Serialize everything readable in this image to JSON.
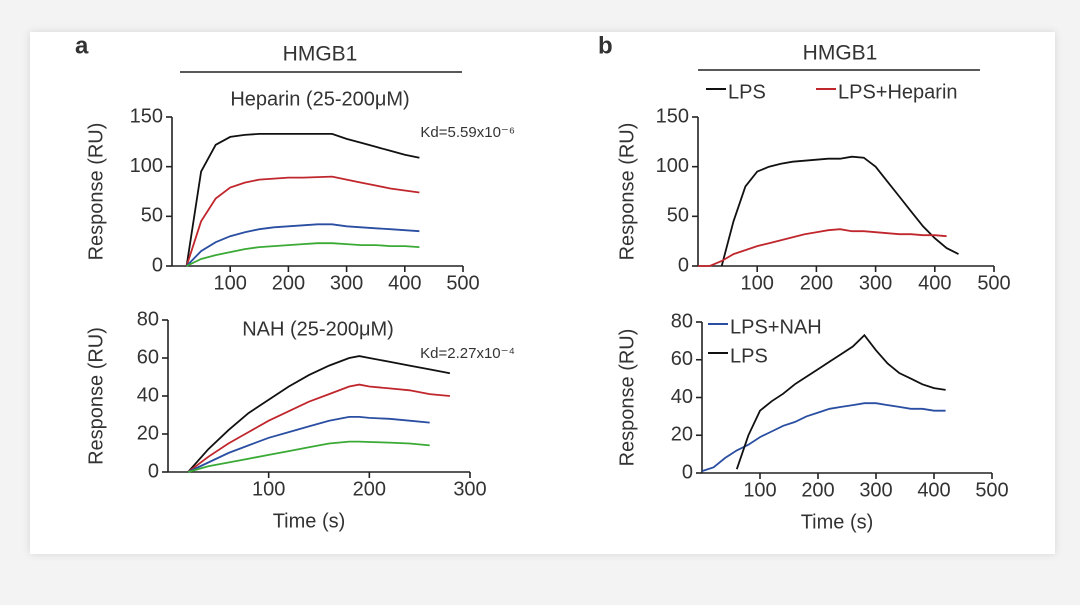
{
  "panels": [
    {
      "label": "a",
      "header": "HMGB1"
    },
    {
      "label": "b",
      "header": "HMGB1"
    }
  ],
  "chart_data": [
    {
      "type": "line",
      "title": "Heparin (25-200μM)",
      "annotation": "Kd=5.59x10⁻⁶",
      "ylabel": "Response (RU)",
      "x": [
        25,
        50,
        75,
        100,
        125,
        150,
        175,
        200,
        225,
        250,
        275,
        300,
        325,
        350,
        375,
        400,
        425
      ],
      "xlim": [
        0,
        500
      ],
      "ylim": [
        0,
        150
      ],
      "xticks": [
        100,
        200,
        300,
        400,
        500
      ],
      "yticks": [
        0,
        50,
        100,
        150
      ],
      "series": [
        {
          "color": "#111111",
          "values": [
            0,
            95,
            122,
            130,
            132,
            133,
            133,
            133,
            133,
            133,
            133,
            128,
            124,
            120,
            116,
            112,
            109
          ]
        },
        {
          "color": "#c0272d",
          "values": [
            0,
            45,
            68,
            79,
            84,
            87,
            88,
            89,
            89,
            89.5,
            90,
            87,
            84,
            81,
            78,
            76,
            74
          ]
        },
        {
          "color": "#2a4ea2",
          "values": [
            0,
            15,
            24,
            30,
            34,
            37,
            39,
            40,
            41,
            42,
            42,
            40,
            39,
            38,
            37,
            36,
            35
          ]
        },
        {
          "color": "#3aaa35",
          "values": [
            0,
            7,
            11,
            14,
            17,
            19,
            20,
            21,
            22,
            23,
            23,
            22,
            21,
            21,
            20,
            20,
            19
          ]
        }
      ]
    },
    {
      "type": "line",
      "title": "NAH (25-200μM)",
      "annotation": "Kd=2.27x10⁻⁴",
      "ylabel": "Response (RU)",
      "xlabel": "Time (s)",
      "x": [
        20,
        40,
        60,
        80,
        100,
        120,
        140,
        160,
        180,
        190,
        200,
        220,
        240,
        260,
        280
      ],
      "xlim": [
        0,
        300
      ],
      "ylim": [
        0,
        80
      ],
      "xticks": [
        100,
        200,
        300
      ],
      "yticks": [
        0,
        20,
        40,
        60,
        80
      ],
      "series": [
        {
          "color": "#111111",
          "values": [
            0,
            12,
            22,
            31,
            38,
            45,
            51,
            56,
            60,
            61,
            60,
            58,
            56,
            54,
            52
          ]
        },
        {
          "color": "#c0272d",
          "values": [
            0,
            8,
            15,
            21,
            27,
            32,
            37,
            41,
            45,
            46,
            45,
            44,
            43,
            41,
            40
          ]
        },
        {
          "color": "#2a4ea2",
          "values": [
            0,
            5,
            10,
            14,
            18,
            21,
            24,
            27,
            29,
            29,
            28.5,
            28,
            27,
            26,
            null
          ]
        },
        {
          "color": "#3aaa35",
          "values": [
            0,
            3,
            5,
            7,
            9,
            11,
            13,
            15,
            16,
            16,
            15.8,
            15.5,
            15,
            14,
            null
          ]
        }
      ]
    },
    {
      "type": "line",
      "ylabel": "Response (RU)",
      "legend": "top",
      "x": [
        0,
        20,
        40,
        60,
        80,
        100,
        120,
        140,
        160,
        180,
        200,
        220,
        240,
        260,
        280,
        300,
        320,
        340,
        360,
        380,
        400,
        420,
        440
      ],
      "xlim": [
        0,
        500
      ],
      "ylim": [
        0,
        150
      ],
      "xticks": [
        100,
        200,
        300,
        400,
        500
      ],
      "yticks": [
        0,
        50,
        100,
        150
      ],
      "series": [
        {
          "name": "LPS",
          "color": "#111111",
          "values": [
            null,
            null,
            0,
            45,
            80,
            95,
            100,
            103,
            105,
            106,
            107,
            108,
            108,
            110,
            109,
            100,
            85,
            70,
            55,
            40,
            28,
            18,
            12
          ]
        },
        {
          "name": "LPS+Heparin",
          "color": "#c0272d",
          "values": [
            0,
            0,
            5,
            12,
            16,
            20,
            23,
            26,
            29,
            32,
            34,
            36,
            37,
            35,
            35,
            34,
            33,
            32,
            32,
            31,
            31,
            30,
            null
          ]
        }
      ]
    },
    {
      "type": "line",
      "ylabel": "Response (RU)",
      "xlabel": "Time (s)",
      "legend": "top-left",
      "x": [
        0,
        20,
        40,
        60,
        80,
        100,
        120,
        140,
        160,
        180,
        200,
        220,
        240,
        260,
        280,
        300,
        320,
        340,
        360,
        380,
        400,
        420,
        440
      ],
      "xlim": [
        0,
        500
      ],
      "ylim": [
        0,
        80
      ],
      "xticks": [
        100,
        200,
        300,
        400,
        500
      ],
      "yticks": [
        0,
        20,
        40,
        60,
        80
      ],
      "series": [
        {
          "name": "LPS+NAH",
          "color": "#2a4ea2",
          "values": [
            1,
            3,
            8,
            12,
            15,
            19,
            22,
            25,
            27,
            30,
            32,
            34,
            35,
            36,
            37,
            37,
            36,
            35,
            34,
            34,
            33,
            33,
            null
          ]
        },
        {
          "name": "LPS",
          "color": "#111111",
          "values": [
            null,
            null,
            null,
            2,
            20,
            33,
            38,
            42,
            47,
            51,
            55,
            59,
            63,
            67,
            73,
            65,
            58,
            53,
            50,
            47,
            45,
            44,
            null
          ]
        }
      ]
    }
  ]
}
